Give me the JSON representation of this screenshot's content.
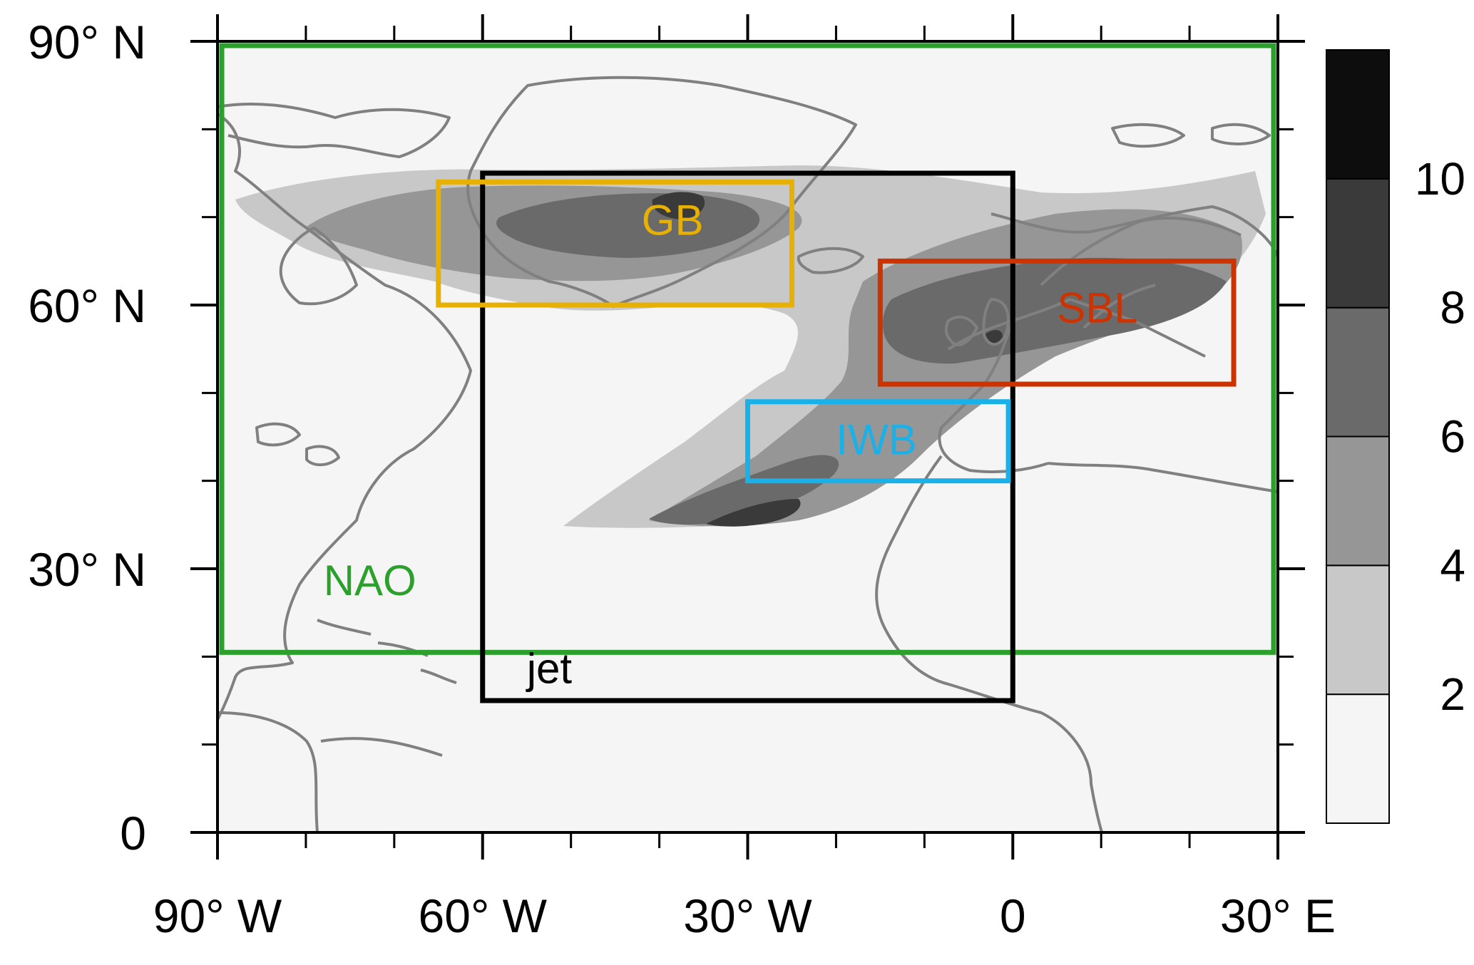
{
  "map": {
    "type": "contour-map",
    "extent": {
      "lon": [
        -90,
        30
      ],
      "lat": [
        0,
        90
      ]
    },
    "lat_ticks": [
      {
        "value": 90,
        "label": "90° N"
      },
      {
        "value": 60,
        "label": "60° N"
      },
      {
        "value": 30,
        "label": "30° N"
      },
      {
        "value": 0,
        "label": "0"
      }
    ],
    "lon_ticks": [
      {
        "value": -90,
        "label": "90° W"
      },
      {
        "value": -60,
        "label": "60° W"
      },
      {
        "value": -30,
        "label": "30° W"
      },
      {
        "value": 0,
        "label": "0"
      },
      {
        "value": 30,
        "label": "30° E"
      }
    ],
    "minor_lat_ticks": [
      10,
      20,
      40,
      50,
      70,
      80
    ],
    "minor_lon_ticks": [
      -80,
      -70,
      -50,
      -40,
      -20,
      -10,
      10,
      20
    ],
    "regions": [
      {
        "label": "NAO",
        "color": "#2ca02c",
        "lon": [
          -90,
          30
        ],
        "lat": [
          20,
          90
        ],
        "label_at": [
          -78,
          27
        ]
      },
      {
        "label": "jet",
        "color": "#000000",
        "lon": [
          -60,
          0
        ],
        "lat": [
          15,
          75
        ],
        "label_at": [
          -55,
          17
        ]
      },
      {
        "label": "GB",
        "color": "#e8b000",
        "lon": [
          -65,
          -25
        ],
        "lat": [
          60,
          74
        ],
        "label_at": [
          -42,
          68
        ]
      },
      {
        "label": "SBL",
        "color": "#cc3300",
        "lon": [
          -15,
          25
        ],
        "lat": [
          51,
          65
        ],
        "label_at": [
          5,
          58
        ]
      },
      {
        "label": "IWB",
        "color": "#1ab0e8",
        "lon": [
          -30,
          -0.5
        ],
        "lat": [
          40,
          49
        ],
        "label_at": [
          -20,
          43
        ]
      }
    ]
  },
  "colorbar": {
    "levels": [
      2,
      4,
      6,
      8,
      10
    ],
    "colors": [
      "#f5f5f5",
      "#c8c8c8",
      "#969696",
      "#6a6a6a",
      "#3a3a3a",
      "#0d0d0d"
    ]
  }
}
